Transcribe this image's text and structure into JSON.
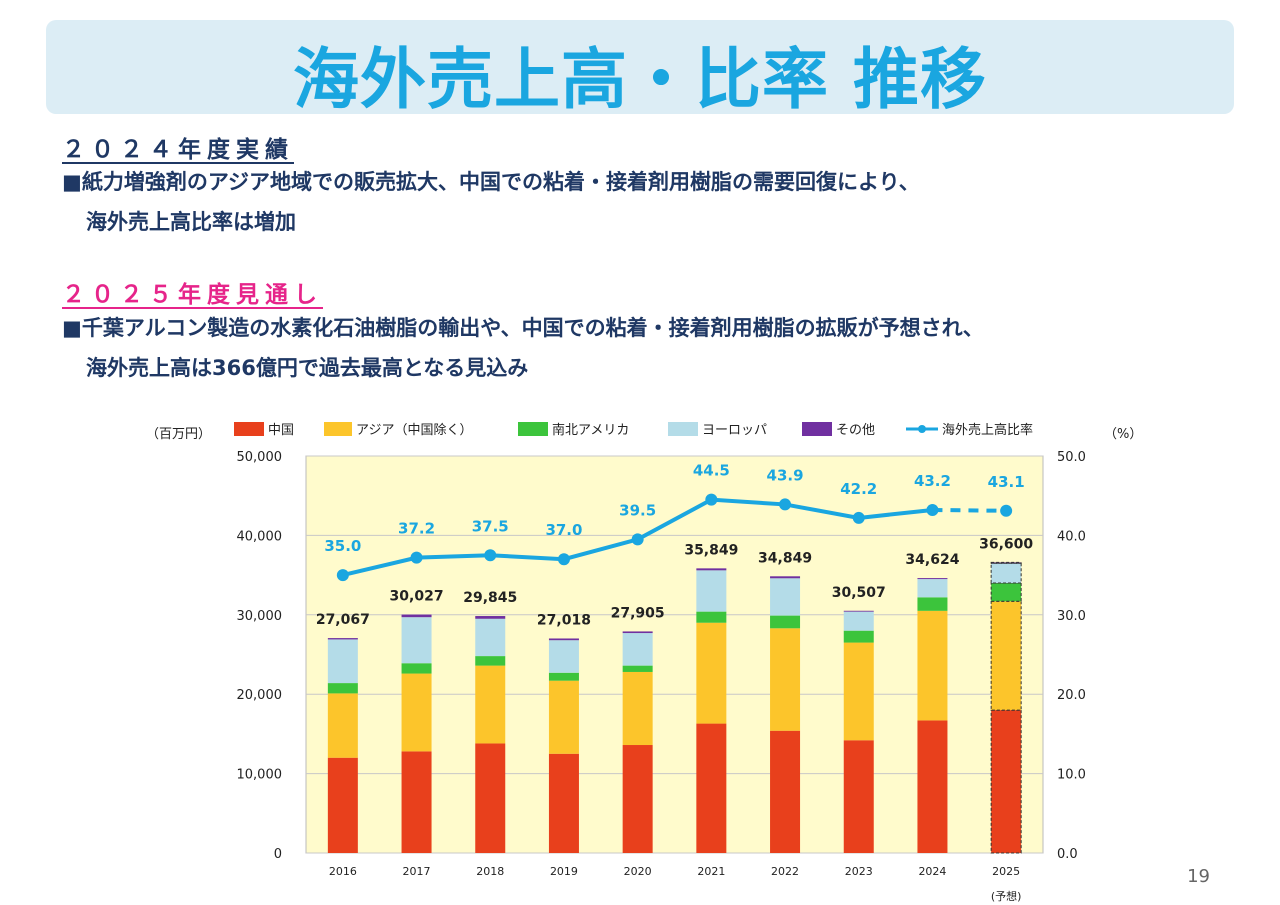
{
  "title": "海外売上高・比率 推移",
  "section1": {
    "heading": "２０２４年度実績",
    "bullet_mark": "■",
    "line1": "紙力増強剤のアジア地域での販売拡大、中国での粘着・接着剤用樹脂の需要回復により、",
    "line2": "海外売上高比率は増加"
  },
  "section2": {
    "heading": "２０２５年度見通し",
    "bullet_mark": "■",
    "line1": "千葉アルコン製造の水素化石油樹脂の輸出や、中国での粘着・接着剤用樹脂の拡販が予想され、",
    "line2": "海外売上高は366億円で過去最高となる見込み"
  },
  "page_number": "19",
  "colors": {
    "china": "#e8401c",
    "asia": "#fcc52b",
    "americas": "#3cc43c",
    "europe": "#b4dce8",
    "other": "#7030a0",
    "ratio": "#1aa6e0",
    "plot_bg": "#fffbcc"
  },
  "chart_data": {
    "type": "bar",
    "stacked": true,
    "categories": [
      "2016",
      "2017",
      "2018",
      "2019",
      "2020",
      "2021",
      "2022",
      "2023",
      "2024",
      "2025"
    ],
    "forecast_note": "(予想)",
    "forecast_index": 9,
    "left_unit": "（百万円）",
    "right_unit": "（%）",
    "left_ticks": [
      "0",
      "10,000",
      "20,000",
      "30,000",
      "40,000",
      "50,000"
    ],
    "right_ticks": [
      "0.0",
      "10.0",
      "20.0",
      "30.0",
      "40.0",
      "50.0"
    ],
    "ylim": [
      0,
      50000
    ],
    "y2lim": [
      0,
      50
    ],
    "series": [
      {
        "name": "中国",
        "values": [
          12000,
          12800,
          13800,
          12500,
          13600,
          16300,
          15400,
          14200,
          16700,
          18000
        ]
      },
      {
        "name": "アジア（中国除く）",
        "values": [
          8100,
          9800,
          9800,
          9200,
          9200,
          12700,
          12900,
          12300,
          13800,
          13700
        ]
      },
      {
        "name": "南北アメリカ",
        "values": [
          1300,
          1300,
          1200,
          1000,
          800,
          1400,
          1600,
          1500,
          1700,
          2300
        ]
      },
      {
        "name": "ヨーロッパ",
        "values": [
          5500,
          5800,
          4700,
          4100,
          4100,
          5200,
          4700,
          2400,
          2300,
          2500
        ]
      },
      {
        "name": "その他",
        "values": [
          167,
          327,
          345,
          218,
          205,
          249,
          249,
          107,
          124,
          100
        ]
      }
    ],
    "totals": [
      27067,
      30027,
      29845,
      27018,
      27905,
      35849,
      34849,
      30507,
      34624,
      36600
    ],
    "total_labels": [
      "27,067",
      "30,027",
      "29,845",
      "27,018",
      "27,905",
      "35,849",
      "34,849",
      "30,507",
      "34,624",
      "36,600"
    ],
    "ratio_series": {
      "name": "海外売上高比率",
      "values": [
        35.0,
        37.2,
        37.5,
        37.0,
        39.5,
        44.5,
        43.9,
        42.2,
        43.2,
        43.1
      ],
      "labels": [
        "35.0",
        "37.2",
        "37.5",
        "37.0",
        "39.5",
        "44.5",
        "43.9",
        "42.2",
        "43.2",
        "43.1"
      ]
    },
    "legend_position": "top",
    "grid": true
  }
}
